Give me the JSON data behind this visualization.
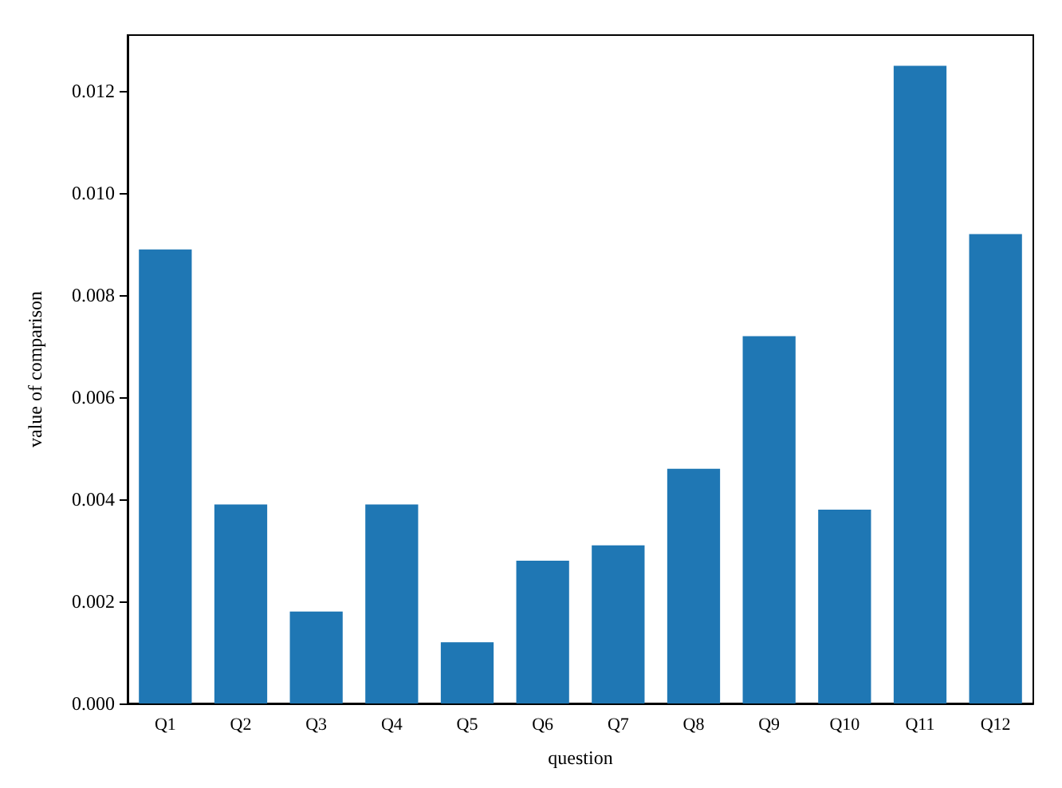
{
  "chart_data": {
    "type": "bar",
    "xlabel": "question",
    "ylabel": "value of comparison",
    "categories": [
      "Q1",
      "Q2",
      "Q3",
      "Q4",
      "Q5",
      "Q6",
      "Q7",
      "Q8",
      "Q9",
      "Q10",
      "Q11",
      "Q12"
    ],
    "values": [
      0.0089,
      0.0039,
      0.0018,
      0.0039,
      0.0012,
      0.0028,
      0.0031,
      0.0046,
      0.0072,
      0.0038,
      0.0125,
      0.0092
    ],
    "color": "#1f77b4",
    "ylim": [
      0,
      0.0131
    ],
    "yticks": [
      {
        "value": 0,
        "label": "0.000"
      },
      {
        "value": 0.002,
        "label": "0.002"
      },
      {
        "value": 0.004,
        "label": "0.004"
      },
      {
        "value": 0.006,
        "label": "0.006"
      },
      {
        "value": 0.008,
        "label": "0.008"
      },
      {
        "value": 0.01,
        "label": "0.010"
      },
      {
        "value": 0.012,
        "label": "0.012"
      }
    ],
    "grid": false
  }
}
